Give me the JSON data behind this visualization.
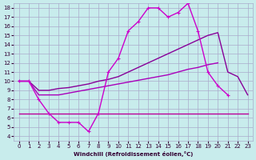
{
  "xlabel": "Windchill (Refroidissement éolien,°C)",
  "background_color": "#c8ecec",
  "grid_color": "#aaaacc",
  "xlim": [
    0,
    23
  ],
  "ylim": [
    4,
    18
  ],
  "yticks": [
    4,
    5,
    6,
    7,
    8,
    9,
    10,
    11,
    12,
    13,
    14,
    15,
    16,
    17,
    18
  ],
  "xticks": [
    0,
    1,
    2,
    3,
    4,
    5,
    6,
    7,
    8,
    9,
    10,
    11,
    12,
    13,
    14,
    15,
    16,
    17,
    18,
    19,
    20,
    21,
    22,
    23
  ],
  "curve1": {
    "x": [
      0,
      1,
      2,
      3,
      4,
      5,
      6,
      7,
      8,
      9,
      10,
      11,
      12,
      13,
      14,
      15,
      16,
      17,
      18,
      19,
      20,
      21
    ],
    "y": [
      10,
      10,
      8,
      6.5,
      5.5,
      5.5,
      5.5,
      4.5,
      6.5,
      11,
      12.5,
      15.5,
      16.5,
      18,
      18,
      17,
      17.5,
      18.5,
      15.5,
      11,
      9.5,
      8.5
    ],
    "color": "#cc00cc",
    "marker": "+"
  },
  "curve2": {
    "x": [
      0,
      1,
      2,
      3,
      4,
      5,
      6,
      7,
      8,
      9,
      10,
      11,
      12,
      13,
      14,
      15,
      16,
      17,
      18,
      19,
      20,
      21,
      22,
      23
    ],
    "y": [
      10,
      10,
      9.0,
      9.0,
      9.2,
      9.3,
      9.5,
      9.7,
      10.0,
      10.2,
      10.5,
      11.0,
      11.5,
      12.0,
      12.5,
      13.0,
      13.5,
      14.0,
      14.5,
      15.0,
      15.3,
      11.0,
      10.5,
      8.5
    ],
    "color": "#880099"
  },
  "curve3": {
    "x": [
      0,
      1,
      2,
      3,
      4,
      5,
      6,
      7,
      8,
      9,
      10,
      11,
      12,
      13,
      14,
      15,
      16,
      17,
      18,
      19,
      20
    ],
    "y": [
      10,
      10,
      8.5,
      8.5,
      8.5,
      8.7,
      8.9,
      9.1,
      9.3,
      9.5,
      9.7,
      9.9,
      10.1,
      10.3,
      10.5,
      10.7,
      11.0,
      11.3,
      11.5,
      11.8,
      12.0
    ],
    "color": "#aa00bb"
  },
  "curve4": {
    "x": [
      0,
      1,
      2,
      3,
      4,
      5,
      6,
      7,
      8,
      9,
      10,
      11,
      12,
      13,
      14,
      15,
      16,
      17,
      18,
      19,
      20,
      21,
      22,
      23
    ],
    "y": [
      6.5,
      6.5,
      6.5,
      6.5,
      6.5,
      6.5,
      6.5,
      6.5,
      6.5,
      6.5,
      6.5,
      6.5,
      6.5,
      6.5,
      6.5,
      6.5,
      6.5,
      6.5,
      6.5,
      6.5,
      6.5,
      6.5,
      6.5,
      6.5
    ],
    "color": "#bb0099"
  }
}
